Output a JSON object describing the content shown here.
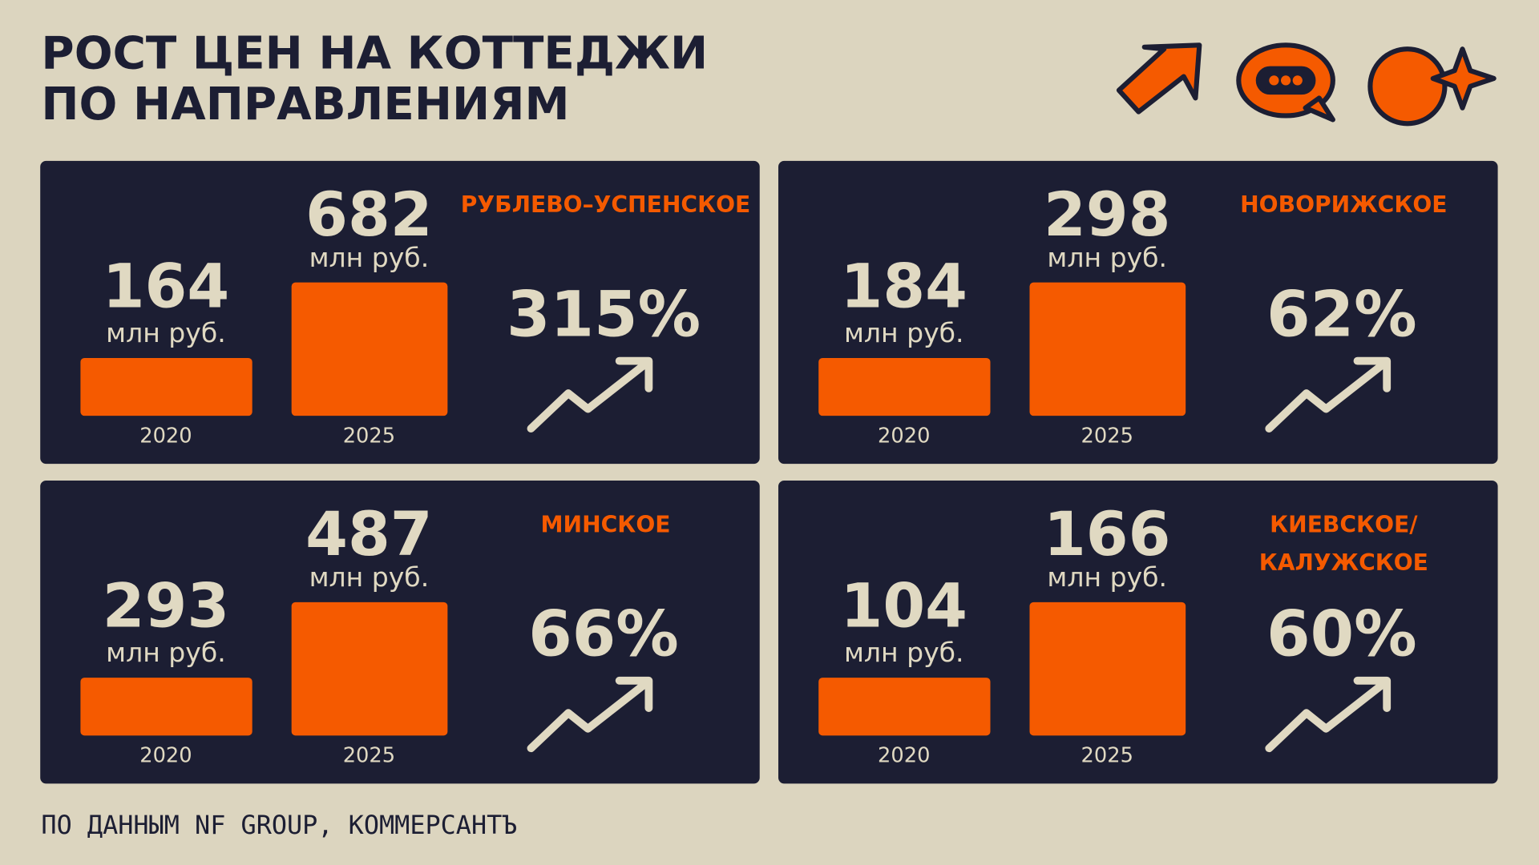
{
  "header": {
    "title_lines": [
      "РОСТ ЦЕН НА КОТТЕДЖИ",
      "ПО НАПРАВЛЕНИЯМ"
    ]
  },
  "panels": [
    {
      "name_lines": [
        "РУБЛЕВО–УСПЕНСКОЕ"
      ],
      "value_2020": "164",
      "unit_2020": "млн руб.",
      "year_2020": "2020",
      "value_2025": "682",
      "unit_2025": "млн руб.",
      "year_2025": "2025",
      "growth": "315%"
    },
    {
      "name_lines": [
        "НОВОРИЖСКОЕ"
      ],
      "value_2020": "184",
      "unit_2020": "млн руб.",
      "year_2020": "2020",
      "value_2025": "298",
      "unit_2025": "млн руб.",
      "year_2025": "2025",
      "growth": "62%"
    },
    {
      "name_lines": [
        "МИНСКОЕ"
      ],
      "value_2020": "293",
      "unit_2020": "млн руб.",
      "year_2020": "2020",
      "value_2025": "487",
      "unit_2025": "млн руб.",
      "year_2025": "2025",
      "growth": "66%"
    },
    {
      "name_lines": [
        "КИЕВСКОЕ/",
        "КАЛУЖСКОЕ"
      ],
      "value_2020": "104",
      "unit_2020": "млн руб.",
      "year_2020": "2020",
      "value_2025": "166",
      "unit_2025": "млн руб.",
      "year_2025": "2025",
      "growth": "60%"
    }
  ],
  "footer": {
    "source": "ПО ДАННЫМ NF GROUP, КОММЕРСАНТЪ"
  }
}
